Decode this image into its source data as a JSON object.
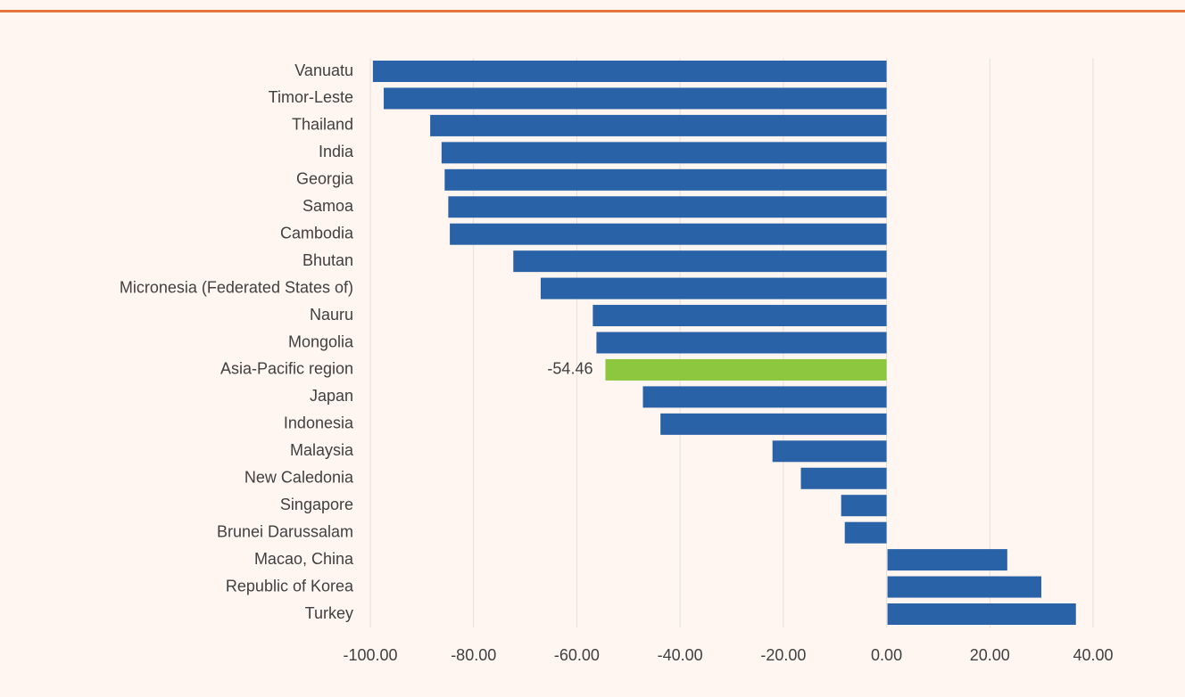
{
  "chart_data": {
    "type": "hbar",
    "categories": [
      "Vanuatu",
      "Timor-Leste",
      "Thailand",
      "India",
      "Georgia",
      "Samoa",
      "Cambodia",
      "Bhutan",
      "Micronesia (Federated States of)",
      "Nauru",
      "Mongolia",
      "Asia-Pacific region",
      "Japan",
      "Indonesia",
      "Malaysia",
      "New Caledonia",
      "Singapore",
      "Brunei Darussalam",
      "Macao, China",
      "Republic of Korea",
      "Turkey"
    ],
    "values": [
      -99.5,
      -97.4,
      -88.4,
      -86.2,
      -85.6,
      -84.9,
      -84.6,
      -72.3,
      -67.0,
      -56.9,
      -56.2,
      -54.46,
      -47.2,
      -43.8,
      -22.1,
      -16.6,
      -8.8,
      -8.1,
      23.2,
      29.8,
      36.5
    ],
    "value_labels": [
      null,
      null,
      null,
      null,
      null,
      null,
      null,
      null,
      null,
      null,
      null,
      "-54.46",
      null,
      null,
      null,
      null,
      null,
      null,
      null,
      null,
      null
    ],
    "colors": [
      "#2a62a8",
      "#2a62a8",
      "#2a62a8",
      "#2a62a8",
      "#2a62a8",
      "#2a62a8",
      "#2a62a8",
      "#2a62a8",
      "#2a62a8",
      "#2a62a8",
      "#2a62a8",
      "#8dc63f",
      "#2a62a8",
      "#2a62a8",
      "#2a62a8",
      "#2a62a8",
      "#2a62a8",
      "#2a62a8",
      "#2a62a8",
      "#2a62a8",
      "#2a62a8"
    ],
    "xlim": [
      -100,
      40
    ],
    "xticks": [
      {
        "value": -100,
        "label": "-100.00"
      },
      {
        "value": -80,
        "label": "-80.00"
      },
      {
        "value": -60,
        "label": "-60.00"
      },
      {
        "value": -40,
        "label": "-40.00"
      },
      {
        "value": -20,
        "label": "-20.00"
      },
      {
        "value": 0,
        "label": "0.00"
      },
      {
        "value": 20,
        "label": "20.00"
      },
      {
        "value": 40,
        "label": "40.00"
      }
    ],
    "grid": true
  }
}
